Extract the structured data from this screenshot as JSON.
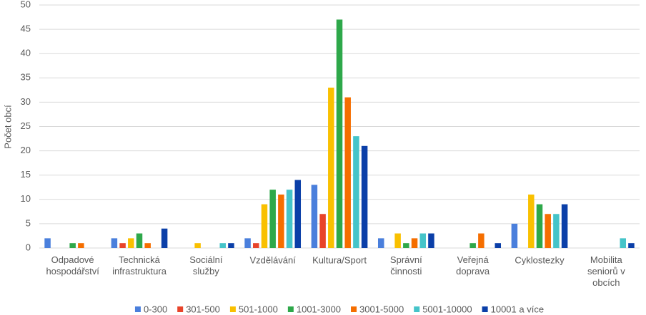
{
  "chart_data": {
    "type": "bar",
    "y_label": "Počet obcí",
    "categories": [
      "Odpadové\nhospodářství",
      "Technická\ninfrastruktura",
      "Sociální\nslužby",
      "Vzdělávání",
      "Kultura/Sport",
      "Správní\nčinnosti",
      "Veřejná\ndoprava",
      "Cyklostezky",
      "Mobilita\nseniorů v\nobcích"
    ],
    "series": [
      {
        "name": "0-300",
        "color": "#4a7fdc",
        "values": [
          2,
          2,
          0,
          2,
          13,
          2,
          0,
          5,
          0
        ]
      },
      {
        "name": "301-500",
        "color": "#e8442a",
        "values": [
          0,
          1,
          0,
          1,
          7,
          0,
          0,
          0,
          0
        ]
      },
      {
        "name": "501-1000",
        "color": "#f9c000",
        "values": [
          0,
          2,
          1,
          9,
          33,
          3,
          0,
          11,
          0
        ]
      },
      {
        "name": "1001-3000",
        "color": "#2ea84a",
        "values": [
          1,
          3,
          0,
          12,
          47,
          1,
          1,
          9,
          0
        ]
      },
      {
        "name": "3001-5000",
        "color": "#f56e00",
        "values": [
          1,
          1,
          0,
          11,
          31,
          2,
          3,
          7,
          0
        ]
      },
      {
        "name": "5001-10000",
        "color": "#45c4c9",
        "values": [
          0,
          0,
          1,
          12,
          23,
          3,
          0,
          7,
          2
        ]
      },
      {
        "name": "10001 a více",
        "color": "#0b3fa8",
        "values": [
          0,
          4,
          1,
          14,
          21,
          3,
          1,
          9,
          1
        ]
      }
    ],
    "ylim": [
      0,
      50
    ],
    "yticks": [
      0,
      5,
      10,
      15,
      20,
      25,
      30,
      35,
      40,
      45,
      50
    ],
    "grid": true,
    "legend": "bottom"
  }
}
